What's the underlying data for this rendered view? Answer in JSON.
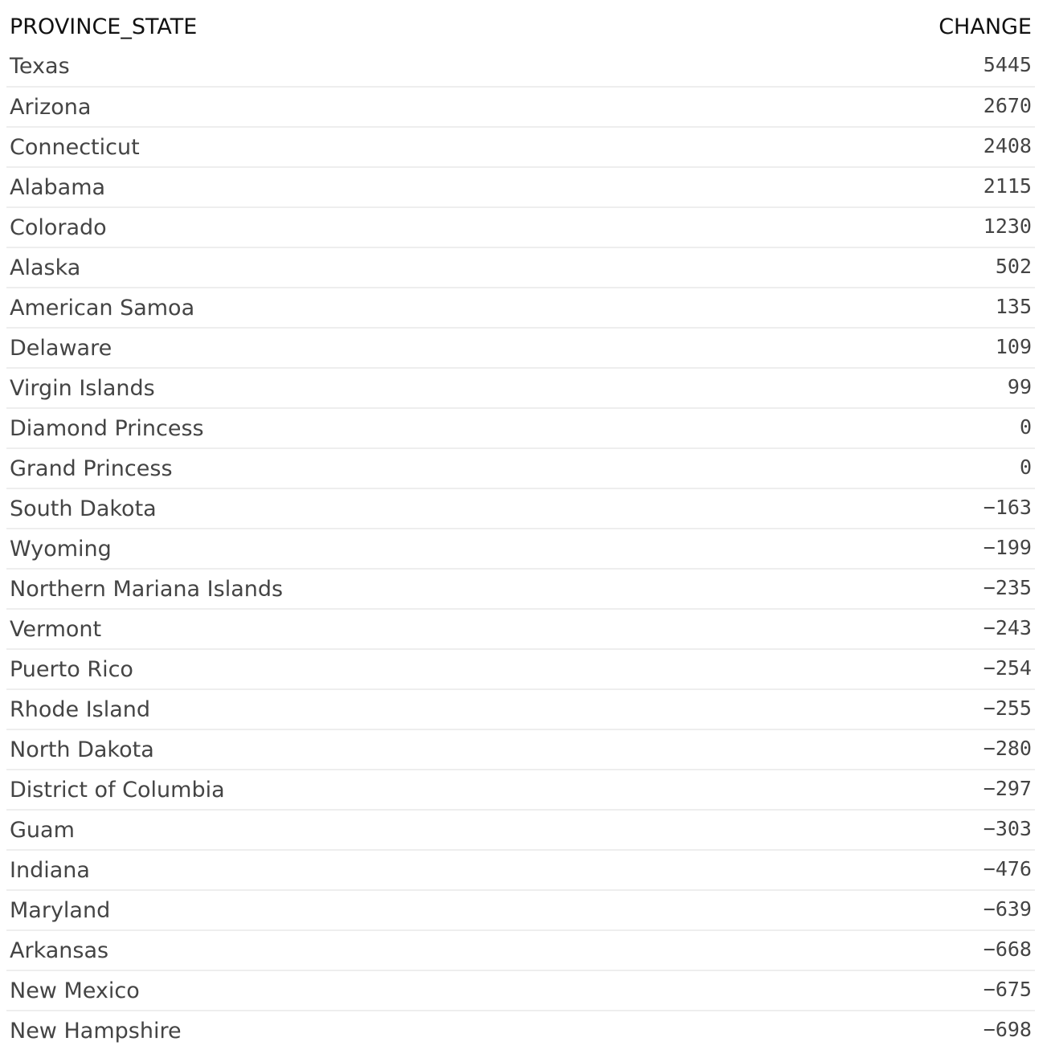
{
  "table": {
    "columns": [
      "PROVINCE_STATE",
      "CHANGE"
    ],
    "rows": [
      {
        "name": "Texas",
        "change": "5445"
      },
      {
        "name": "Arizona",
        "change": "2670"
      },
      {
        "name": "Connecticut",
        "change": "2408"
      },
      {
        "name": "Alabama",
        "change": "2115"
      },
      {
        "name": "Colorado",
        "change": "1230"
      },
      {
        "name": "Alaska",
        "change": "502"
      },
      {
        "name": "American Samoa",
        "change": "135"
      },
      {
        "name": "Delaware",
        "change": "109"
      },
      {
        "name": "Virgin Islands",
        "change": "99"
      },
      {
        "name": "Diamond Princess",
        "change": "0"
      },
      {
        "name": "Grand Princess",
        "change": "0"
      },
      {
        "name": "South Dakota",
        "change": "−163"
      },
      {
        "name": "Wyoming",
        "change": "−199"
      },
      {
        "name": "Northern Mariana Islands",
        "change": "−235"
      },
      {
        "name": "Vermont",
        "change": "−243"
      },
      {
        "name": "Puerto Rico",
        "change": "−254"
      },
      {
        "name": "Rhode Island",
        "change": "−255"
      },
      {
        "name": "North Dakota",
        "change": "−280"
      },
      {
        "name": "District of Columbia",
        "change": "−297"
      },
      {
        "name": "Guam",
        "change": "−303"
      },
      {
        "name": "Indiana",
        "change": "−476"
      },
      {
        "name": "Maryland",
        "change": "−639"
      },
      {
        "name": "Arkansas",
        "change": "−668"
      },
      {
        "name": "New Mexico",
        "change": "−675"
      },
      {
        "name": "New Hampshire",
        "change": "−698"
      }
    ]
  }
}
